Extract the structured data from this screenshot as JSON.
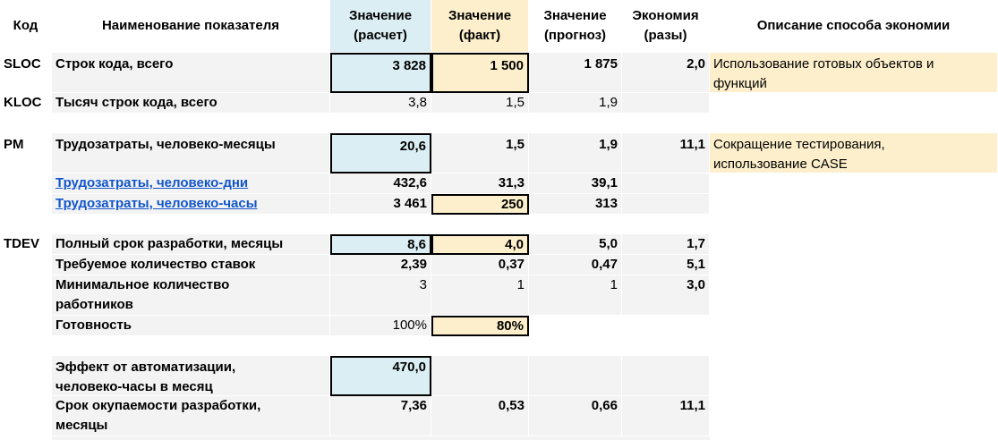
{
  "headers": {
    "code": "Код",
    "name": "Наименование показателя",
    "calc": "Значение (расчет)",
    "fact": "Значение (факт)",
    "forecast": "Значение (прогноз)",
    "economy": "Экономия (разы)",
    "description": "Описание способа экономии"
  },
  "rows": {
    "sloc": {
      "code": "SLOC",
      "name": "Строк кода, всего",
      "calc": "3 828",
      "fact": "1 500",
      "forecast": "1 875",
      "economy": "2,0",
      "description": "Использование готовых объектов и функций"
    },
    "kloc": {
      "code": "KLOC",
      "name": "Тысяч строк кода, всего",
      "calc": "3,8",
      "fact": "1,5",
      "forecast": "1,9"
    },
    "pm": {
      "code": "PM",
      "name": "Трудозатраты, человеко-месяцы",
      "calc": "20,6",
      "fact": "1,5",
      "forecast": "1,9",
      "economy": "11,1",
      "description": "Сокращение тестирования, использование CASE"
    },
    "pm_days": {
      "name": "Трудозатраты, человеко-дни",
      "calc": "432,6",
      "fact": "31,3",
      "forecast": "39,1"
    },
    "pm_hours": {
      "name": "Трудозатраты, человеко-часы",
      "calc": "3 461",
      "fact": "250",
      "forecast": "313"
    },
    "tdev": {
      "code": "TDEV",
      "name": "Полный срок разработки, месяцы",
      "calc": "8,6",
      "fact": "4,0",
      "forecast": "5,0",
      "economy": "1,7"
    },
    "staff": {
      "name": "Требуемое количество ставок",
      "calc": "2,39",
      "fact": "0,37",
      "forecast": "0,47",
      "economy": "5,1"
    },
    "workers": {
      "name": "Минимальное количество работников",
      "calc": "3",
      "fact": "1",
      "forecast": "1",
      "economy": "3,0"
    },
    "ready": {
      "name": "Готовность",
      "calc": "100%",
      "fact": "80%"
    },
    "effect": {
      "name": "Эффект от автоматизации, человеко-часы в месяц",
      "calc": "470,0"
    },
    "payback": {
      "name": "Срок окупаемости разработки, месяцы",
      "calc": "7,36",
      "fact": "0,53",
      "forecast": "0,66",
      "economy": "11,1"
    }
  }
}
